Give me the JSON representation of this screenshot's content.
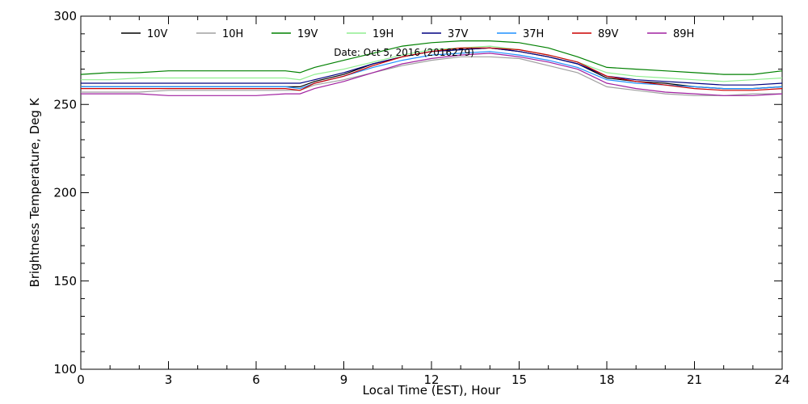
{
  "chart_data": {
    "type": "line",
    "xlabel": "Local Time (EST), Hour",
    "ylabel": "Brightness Temperature, Deg  K",
    "annotation": "Date: Oct  5, 2016 (2016279)",
    "xlim": [
      0,
      24
    ],
    "ylim": [
      100,
      300
    ],
    "x_ticks": [
      0,
      3,
      6,
      9,
      12,
      15,
      18,
      21,
      24
    ],
    "y_ticks": [
      100,
      150,
      200,
      250,
      300
    ],
    "x_minor_step": 1,
    "y_minor_step": 10,
    "grid": false,
    "legend_position": "top, horizontal",
    "x": [
      0,
      1,
      2,
      3,
      4,
      5,
      6,
      7,
      7.5,
      8,
      9,
      10,
      11,
      12,
      13,
      14,
      15,
      16,
      17,
      18,
      19,
      20,
      21,
      22,
      23,
      24
    ],
    "series": [
      {
        "name": "10V",
        "color": "#000000",
        "values": [
          260,
          260,
          260,
          260,
          260,
          260,
          260,
          260,
          260,
          263,
          267,
          273,
          277,
          280,
          281,
          282,
          280,
          277,
          273,
          265,
          263,
          262,
          260,
          259,
          259,
          260
        ]
      },
      {
        "name": "10H",
        "color": "#a0a0a0",
        "values": [
          257,
          257,
          257,
          258,
          258,
          258,
          258,
          258,
          258,
          261,
          264,
          268,
          272,
          275,
          277,
          277,
          276,
          272,
          268,
          260,
          258,
          256,
          255,
          255,
          256,
          256
        ]
      },
      {
        "name": "19V",
        "color": "#008000",
        "values": [
          267,
          268,
          268,
          269,
          269,
          269,
          269,
          269,
          268,
          271,
          275,
          279,
          283,
          285,
          286,
          286,
          285,
          282,
          277,
          271,
          270,
          269,
          268,
          267,
          267,
          269
        ]
      },
      {
        "name": "19H",
        "color": "#90ee90",
        "values": [
          264,
          264,
          265,
          265,
          265,
          265,
          265,
          265,
          264,
          267,
          270,
          274,
          278,
          281,
          282,
          283,
          281,
          278,
          274,
          268,
          266,
          265,
          264,
          263,
          264,
          265
        ]
      },
      {
        "name": "37V",
        "color": "#000080",
        "values": [
          262,
          262,
          262,
          262,
          262,
          262,
          262,
          262,
          262,
          264,
          268,
          273,
          277,
          280,
          281,
          282,
          280,
          277,
          273,
          266,
          264,
          263,
          262,
          261,
          261,
          262
        ]
      },
      {
        "name": "37H",
        "color": "#1e90ff",
        "values": [
          260,
          260,
          260,
          260,
          260,
          260,
          260,
          260,
          259,
          262,
          266,
          271,
          275,
          278,
          279,
          280,
          278,
          275,
          271,
          264,
          262,
          261,
          260,
          259,
          259,
          260
        ]
      },
      {
        "name": "89V",
        "color": "#cc0000",
        "values": [
          259,
          259,
          259,
          259,
          259,
          259,
          259,
          259,
          258,
          262,
          266,
          272,
          277,
          280,
          282,
          282,
          281,
          278,
          274,
          266,
          263,
          261,
          259,
          258,
          258,
          259
        ]
      },
      {
        "name": "89H",
        "color": "#a020a0",
        "values": [
          256,
          256,
          256,
          255,
          255,
          255,
          255,
          256,
          256,
          259,
          263,
          268,
          273,
          276,
          278,
          279,
          277,
          274,
          270,
          262,
          259,
          257,
          256,
          255,
          255,
          256
        ]
      }
    ]
  }
}
